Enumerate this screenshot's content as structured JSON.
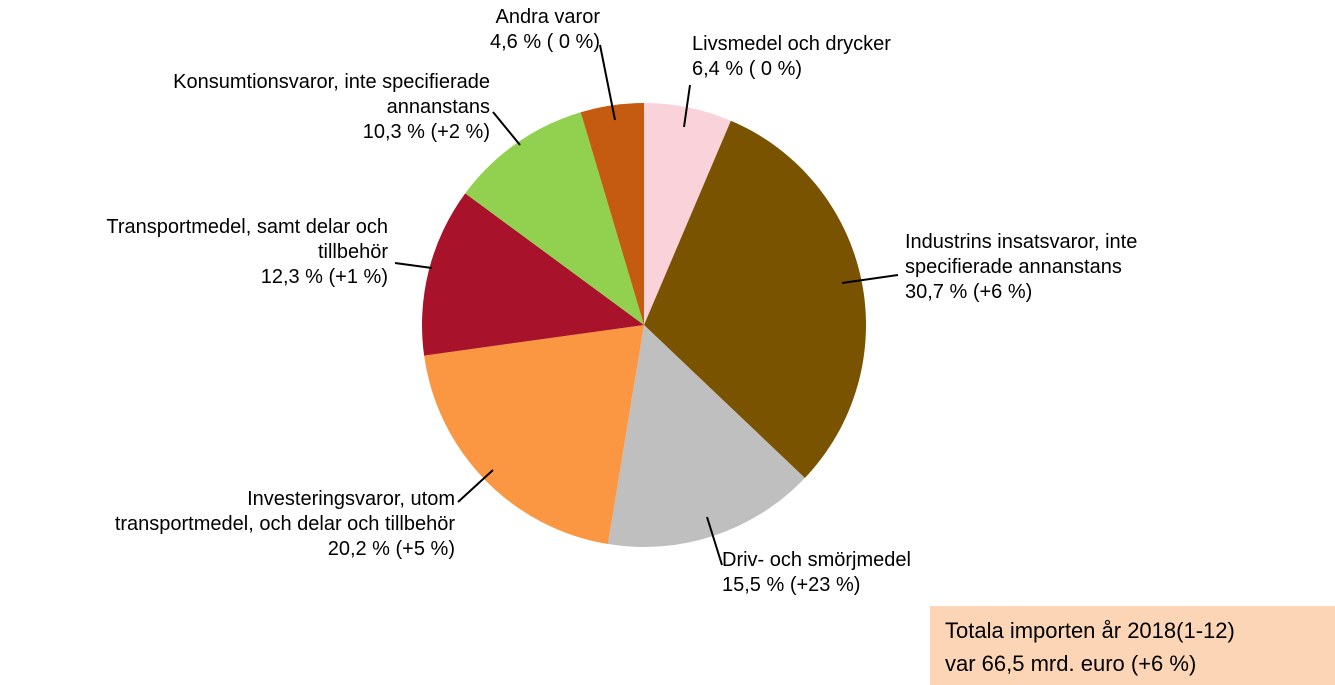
{
  "chart_data": {
    "type": "pie",
    "categories": [
      "Livsmedel och drycker",
      "Industrins insatsvaror, inte\nspecifierade annanstans",
      "Driv- och smörjmedel",
      "Investeringsvaror, utom\ntransportmedel, och delar och tillbehör",
      "Transportmedel, samt delar och\ntillbehör",
      "Konsumtionsvaror, inte specifierade\nannanstans",
      "Andra varor"
    ],
    "values": [
      6.4,
      30.7,
      15.5,
      20.2,
      12.3,
      10.3,
      4.6
    ],
    "value_labels": [
      "6,4 % ( 0 %)",
      "30,7 % (+6 %)",
      "15,5 % (+23 %)",
      "20,2 % (+5 %)",
      "12,3 % (+1 %)",
      "10,3 % (+2 %)",
      "4,6 % ( 0 %)"
    ],
    "colors": [
      "#f9d3d9",
      "#7a5300",
      "#bfbfbf",
      "#fb9742",
      "#a8122a",
      "#92d050",
      "#c55a11"
    ],
    "annotation": [
      "Totala importen år 2018(1-12)",
      "var 66,5 mrd. euro (+6 %)"
    ]
  }
}
